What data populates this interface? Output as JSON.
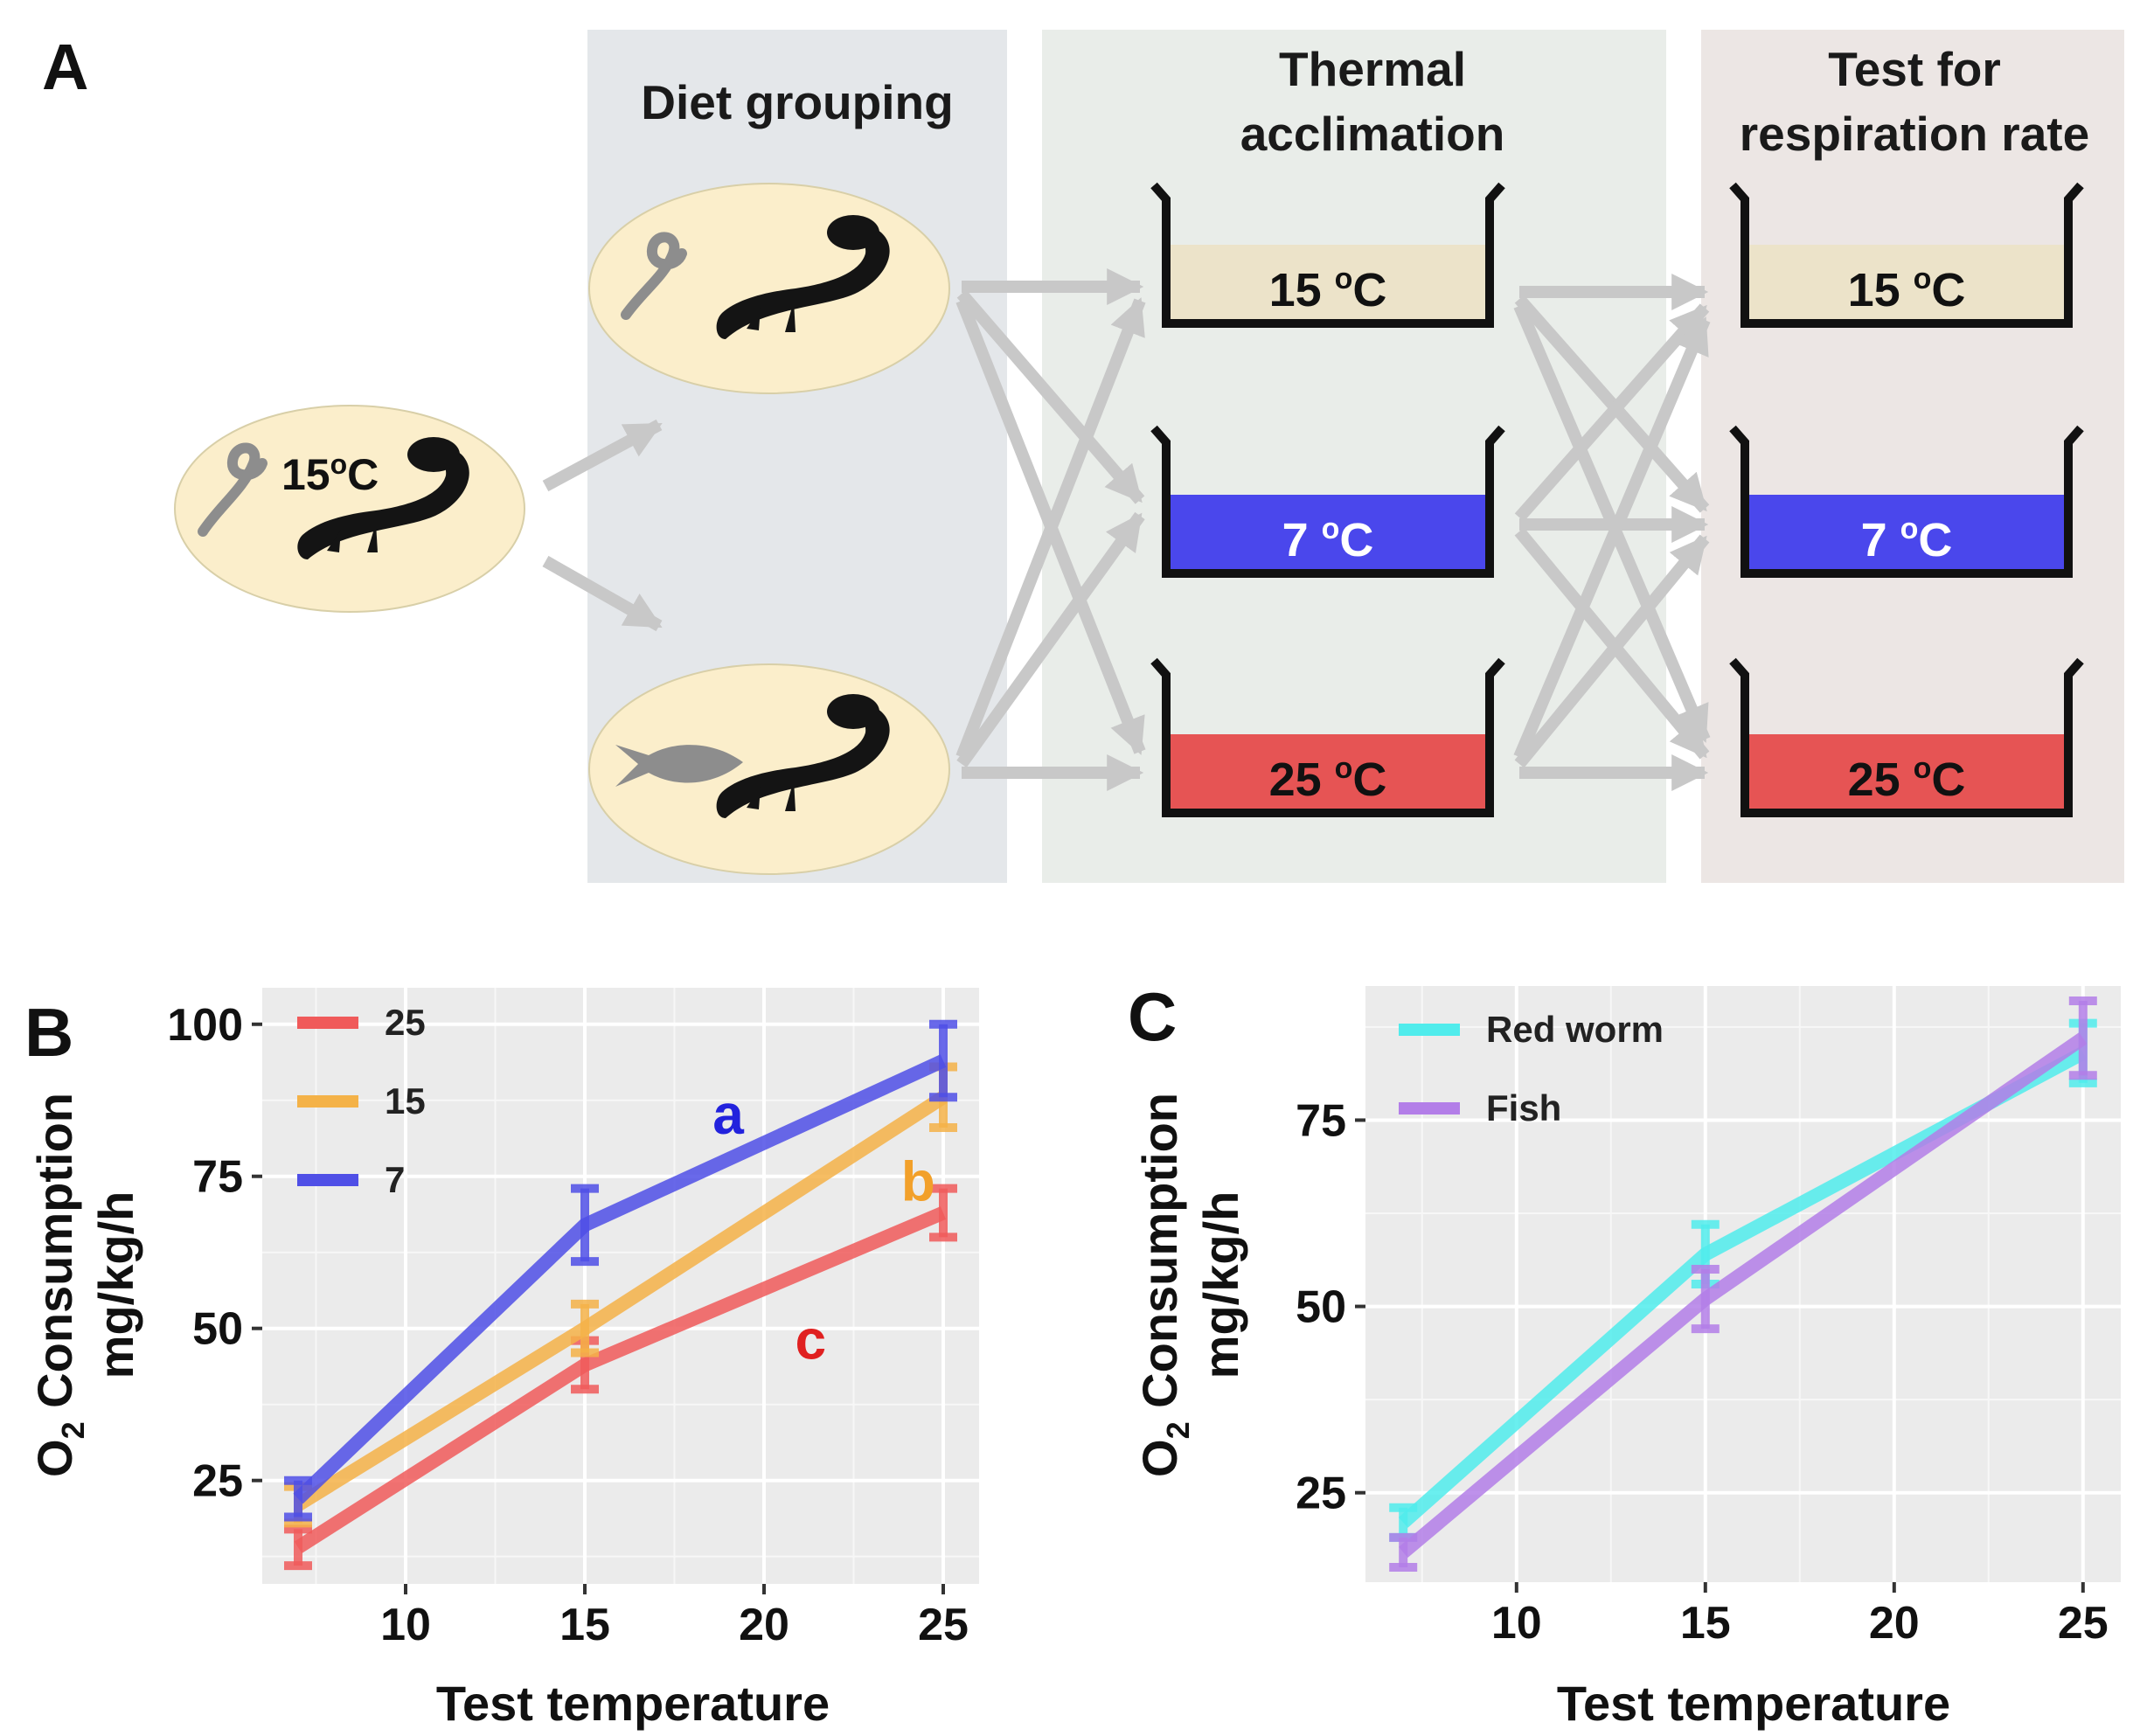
{
  "panel_a": {
    "label": "A",
    "stage_diet": "Diet grouping",
    "stage_thermal_line1": "Thermal",
    "stage_thermal_line2": "acclimation",
    "stage_test_line1": "Test for",
    "stage_test_line2": "respiration rate",
    "start_temp": "15",
    "start_temp_sup": "o",
    "start_temp_unit": "C",
    "diets": [
      "red worm",
      "fish"
    ],
    "tanks": [
      {
        "num": "15 ",
        "sup": "o",
        "unit": "C",
        "color": "#ece3c9"
      },
      {
        "num": "7 ",
        "sup": "o",
        "unit": "C",
        "color": "#4a47ec"
      },
      {
        "num": "25 ",
        "sup": "o",
        "unit": "C",
        "color": "#e65454"
      }
    ],
    "colors": {
      "ellipse": "#fbeecb",
      "col_diet": "#e4e7ea",
      "col_thermal": "#e9ede9",
      "col_test": "#ece6e4",
      "arrow": "#c8c8c8"
    }
  },
  "chart_data": [
    {
      "panel": "B",
      "type": "line",
      "xlabel": "Test temperature",
      "ylabel_o": "O",
      "ylabel_sub": "2",
      "ylabel_rest": " Consumption",
      "ylabel_line2": "mg/kg/h",
      "xlim": [
        6,
        26
      ],
      "ylim": [
        8,
        106
      ],
      "xticks": [
        10,
        15,
        20,
        25
      ],
      "yticks": [
        25,
        50,
        75,
        100
      ],
      "x": [
        7,
        15,
        25
      ],
      "series": [
        {
          "name": "25",
          "color": "#f05a5a",
          "values": [
            14,
            44,
            69
          ],
          "err": [
            3,
            4,
            4
          ]
        },
        {
          "name": "15",
          "color": "#f4b248",
          "values": [
            21,
            50,
            88
          ],
          "err": [
            3,
            4,
            5
          ]
        },
        {
          "name": "7",
          "color": "#4f4fe6",
          "values": [
            22,
            67,
            94
          ],
          "err": [
            3,
            6,
            6
          ]
        }
      ],
      "annotations": [
        {
          "text": "a",
          "x": 19,
          "y": 82,
          "color": "#2222dd"
        },
        {
          "text": "b",
          "x": 24.3,
          "y": 71,
          "color": "#f2a02a"
        },
        {
          "text": "c",
          "x": 21.3,
          "y": 45,
          "color": "#e02020"
        }
      ],
      "legend": "top-left"
    },
    {
      "panel": "C",
      "type": "line",
      "xlabel": "Test temperature",
      "ylabel_o": "O",
      "ylabel_sub": "2",
      "ylabel_rest": " Consumption",
      "ylabel_line2": "mg/kg/h",
      "xlim": [
        6,
        26
      ],
      "ylim": [
        13,
        93
      ],
      "xticks": [
        10,
        15,
        20,
        25
      ],
      "yticks": [
        25,
        50,
        75
      ],
      "x": [
        7,
        15,
        25
      ],
      "series": [
        {
          "name": "Red worm",
          "color": "#50ecec",
          "values": [
            21,
            57,
            84
          ],
          "err": [
            2,
            4,
            4
          ]
        },
        {
          "name": "Fish",
          "color": "#b37ee8",
          "values": [
            17,
            51,
            86
          ],
          "err": [
            2,
            4,
            5
          ]
        }
      ],
      "annotations": [],
      "legend": "top-left"
    }
  ]
}
